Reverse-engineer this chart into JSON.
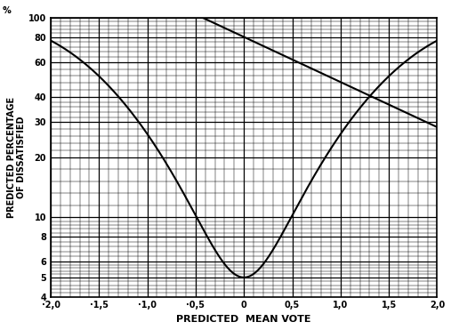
{
  "xlabel": "PREDICTED  MEAN VOTE",
  "ylabel": "PREDICTED PERCENTAGE\nOF DISSATISFIED",
  "ylabel_label": "%",
  "xlim": [
    -2.0,
    2.0
  ],
  "ylim_log": [
    4,
    100
  ],
  "xticks": [
    -2.0,
    -1.5,
    -1.0,
    -0.5,
    0.0,
    0.5,
    1.0,
    1.5,
    2.0
  ],
  "xtick_labels": [
    "·2,0",
    "·1,5",
    "·1,0",
    "·0,5",
    "0",
    "0,5",
    "1,0",
    "1,5",
    "2,0"
  ],
  "yticks_major": [
    4,
    5,
    6,
    8,
    10,
    20,
    30,
    40,
    60,
    80,
    100
  ],
  "ytick_labels": [
    "4",
    "5",
    "6",
    "8",
    "10",
    "20",
    "30",
    "40",
    "60",
    "80",
    "100"
  ],
  "background_color": "#ffffff",
  "line_color": "#000000",
  "grid_major_color": "#000000",
  "grid_minor_color": "#888888"
}
